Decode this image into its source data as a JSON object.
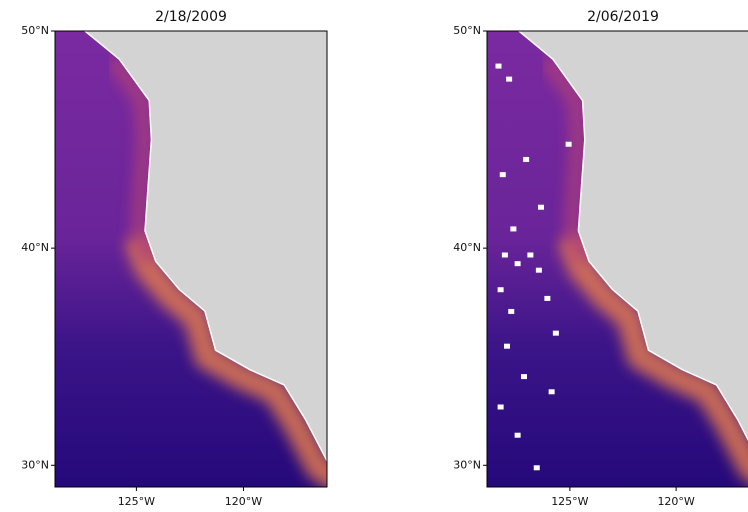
{
  "panels": [
    {
      "title": "2/18/2009",
      "lat_range": [
        29,
        50
      ],
      "lon_range": [
        -128.8,
        -116.1
      ],
      "lat_ticks": [
        {
          "value": 50,
          "label": "50°N"
        },
        {
          "value": 40,
          "label": "40°N"
        },
        {
          "value": 30,
          "label": "30°N"
        }
      ],
      "lon_ticks": [
        {
          "value": -125,
          "label": "125°W"
        },
        {
          "value": -120,
          "label": "120°W"
        }
      ]
    },
    {
      "title": "2/06/2019",
      "lat_range": [
        29,
        50
      ],
      "lon_range": [
        -128.9,
        -116.1
      ],
      "lat_ticks": [
        {
          "value": 50,
          "label": "50°N"
        },
        {
          "value": 40,
          "label": "40°N"
        },
        {
          "value": 30,
          "label": "30°N"
        }
      ],
      "lon_ticks": [
        {
          "value": -125,
          "label": "125°W"
        },
        {
          "value": -120,
          "label": "120°W"
        }
      ]
    }
  ]
}
